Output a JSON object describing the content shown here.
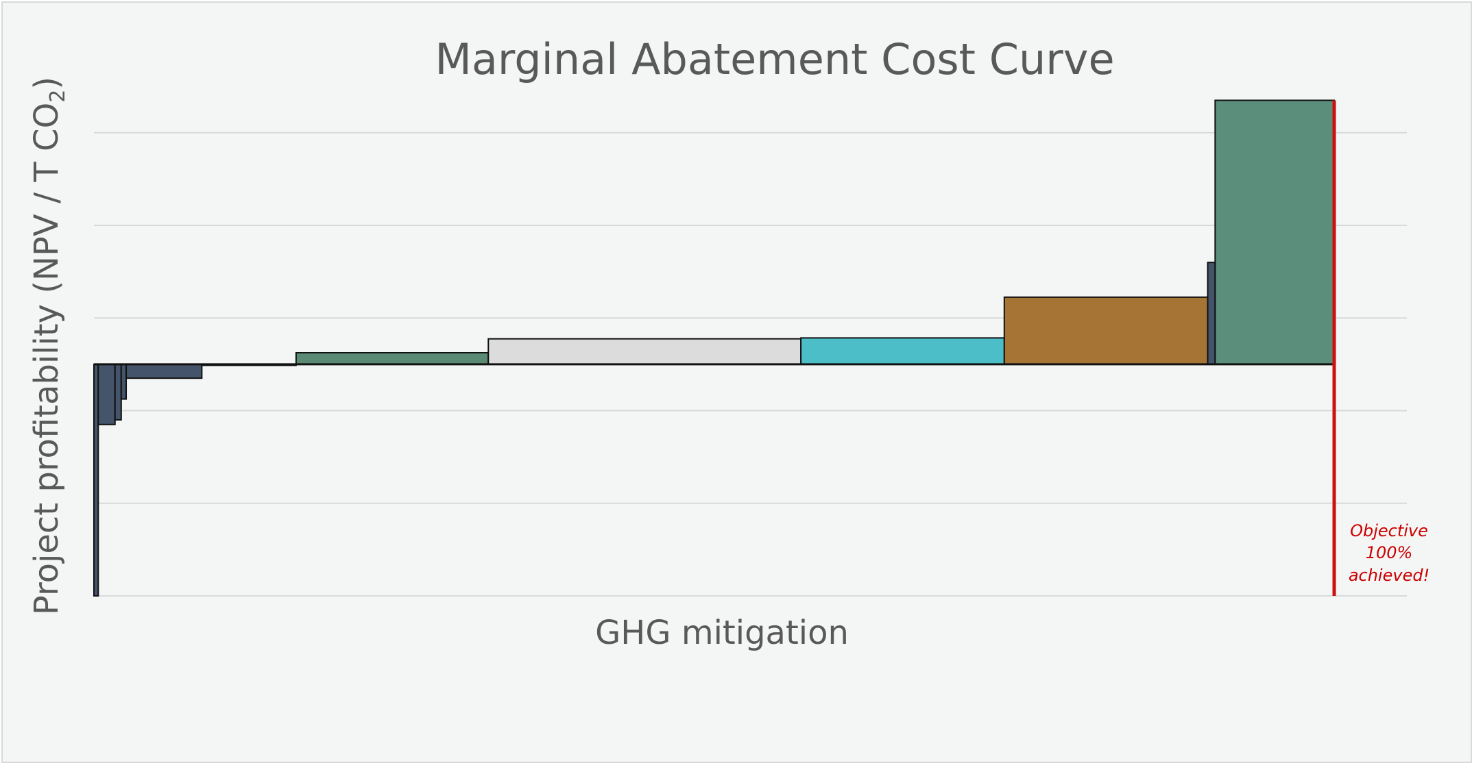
{
  "chart_data": {
    "type": "bar",
    "variant": "marginal-abatement-cost-curve",
    "title": "Marginal Abatement Cost Curve",
    "xlabel": "GHG mitigation",
    "ylabel": "Project profitability (NPV / T CO",
    "ylabel_subscript": "2",
    "ylabel_suffix": ")",
    "xlim": [
      0,
      100
    ],
    "ylim": [
      -5,
      5.5
    ],
    "y_ticks": [
      -5,
      -3,
      -1,
      1,
      3,
      5
    ],
    "tick_labels_shown": false,
    "grid": true,
    "legend": "none",
    "series": [
      {
        "x_start": 0.0,
        "x_end": 0.35,
        "value": -5.0,
        "color": "#44546a"
      },
      {
        "x_start": 0.35,
        "x_end": 1.7,
        "value": -1.3,
        "color": "#44546a"
      },
      {
        "x_start": 1.7,
        "x_end": 2.2,
        "value": -1.2,
        "color": "#44546a"
      },
      {
        "x_start": 2.2,
        "x_end": 2.6,
        "value": -0.75,
        "color": "#44546a"
      },
      {
        "x_start": 2.6,
        "x_end": 8.7,
        "value": -0.3,
        "color": "#44546a"
      },
      {
        "x_start": 8.7,
        "x_end": 16.3,
        "value": 0.0,
        "color": "#44546a"
      },
      {
        "x_start": 16.3,
        "x_end": 31.8,
        "value": 0.25,
        "color": "#5b8a74"
      },
      {
        "x_start": 31.8,
        "x_end": 57.0,
        "value": 0.55,
        "color": "#dbdcdb"
      },
      {
        "x_start": 57.0,
        "x_end": 73.4,
        "value": 0.57,
        "color": "#4bbec8"
      },
      {
        "x_start": 73.4,
        "x_end": 89.8,
        "value": 1.45,
        "color": "#a67535"
      },
      {
        "x_start": 89.8,
        "x_end": 90.4,
        "value": 2.2,
        "color": "#44546a"
      },
      {
        "x_start": 90.4,
        "x_end": 100.0,
        "value": 5.7,
        "color": "#5b8e7b"
      }
    ],
    "objective_line": {
      "x": 100,
      "color": "#cc1111",
      "label_lines": [
        "Objective",
        "100%",
        "achieved!"
      ]
    },
    "colors": {
      "background": "#f4f6f5",
      "grid": "#d9d9d9",
      "title": "#595959",
      "bar_stroke": "#111111"
    }
  }
}
